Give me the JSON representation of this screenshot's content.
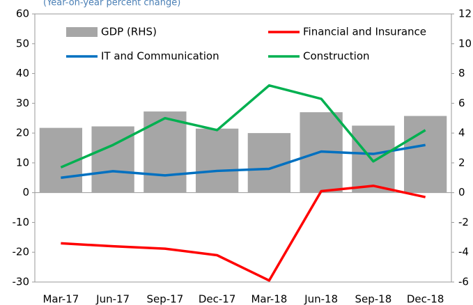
{
  "chart_data": {
    "type": "combo",
    "subtitle": "(Year-on-year percent change)",
    "categories": [
      "Mar-17",
      "Jun-17",
      "Sep-17",
      "Dec-17",
      "Mar-18",
      "Jun-18",
      "Sep-18",
      "Dec-18"
    ],
    "series": [
      {
        "name": "GDP (RHS)",
        "type": "bar",
        "axis": "y2",
        "color": "#a6a6a6",
        "values": [
          4.35,
          4.45,
          5.45,
          4.3,
          4.0,
          5.4,
          4.5,
          5.15
        ]
      },
      {
        "name": "Financial and Insurance",
        "type": "line",
        "color": "#ff0000",
        "values": [
          -17,
          -18,
          -18.8,
          -21,
          -29.5,
          0.5,
          2.3,
          -1.5
        ]
      },
      {
        "name": "IT and Communication",
        "type": "line",
        "color": "#0070c0",
        "values": [
          5,
          7.2,
          5.8,
          7.3,
          8,
          13.8,
          13,
          16
        ]
      },
      {
        "name": "Construction",
        "type": "line",
        "color": "#00b050",
        "values": [
          8.5,
          16,
          25,
          21,
          36,
          31.5,
          10.5,
          21
        ]
      }
    ],
    "ylim": [
      -30,
      60
    ],
    "yticks": [
      -30,
      -20,
      -10,
      0,
      10,
      20,
      30,
      40,
      50,
      60
    ],
    "y2lim": [
      -6,
      12
    ],
    "y2ticks": [
      -6,
      -4,
      -2,
      0,
      2,
      4,
      6,
      8,
      10,
      12
    ]
  }
}
